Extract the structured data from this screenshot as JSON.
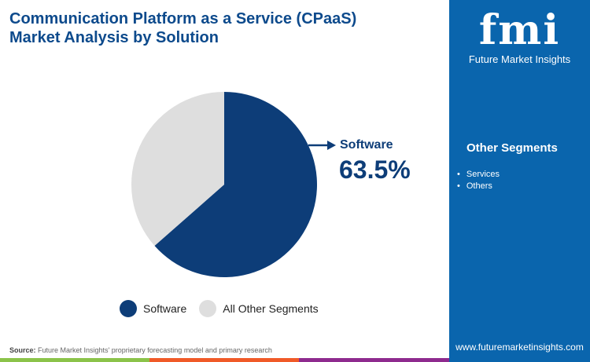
{
  "title_line1": "Communication Platform as a Service (CPaaS)",
  "title_line2": "Market Analysis by Solution",
  "logo": {
    "mark": "fmi",
    "name": "Future Market Insights"
  },
  "sidebar": {
    "heading": "Other Segments",
    "items": [
      "Services",
      "Others"
    ],
    "website": "www.futuremarketinsights.com"
  },
  "source": {
    "label": "Source:",
    "text": " Future Market Insights' proprietary forecasting model and primary research"
  },
  "colors": {
    "software": "#0d3d78",
    "other": "#dedede",
    "sidebar": "#0a65ad",
    "strips": [
      "#8bc34a",
      "#f05a28",
      "#8e2a8e"
    ]
  },
  "chart_data": {
    "type": "pie",
    "categories": [
      "Software",
      "All Other Segments"
    ],
    "values": [
      63.5,
      36.5
    ],
    "annotation": {
      "label": "Software",
      "value": "63.5%"
    },
    "legend": "bottom"
  }
}
